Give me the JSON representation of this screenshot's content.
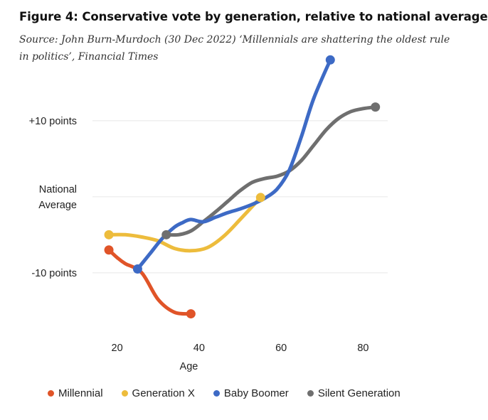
{
  "title": "Figure 4: Conservative vote by generation, relative to national average",
  "subtitle": "Source: John Burn-Murdoch (30 Dec 2022) ‘Millennials are shattering the oldest rule in politics’, Financial Times",
  "chart_data": {
    "type": "line",
    "xlabel": "Age",
    "ylabel": "",
    "x_ticks": [
      20,
      40,
      60,
      80
    ],
    "y_ticks": [
      {
        "value": 10,
        "label": "+10 points"
      },
      {
        "value": 0,
        "label": "National Average"
      },
      {
        "value": -10,
        "label": "-10 points"
      }
    ],
    "xlim": [
      14,
      86
    ],
    "ylim": [
      -16,
      17
    ],
    "grid": true,
    "legend_position": "bottom",
    "series": [
      {
        "name": "Millennial",
        "color": "#e05428",
        "points": [
          [
            18,
            -7
          ],
          [
            20,
            -8
          ],
          [
            22,
            -8.8
          ],
          [
            26,
            -10
          ],
          [
            30,
            -13.5
          ],
          [
            34,
            -15.2
          ],
          [
            38,
            -15.4
          ]
        ]
      },
      {
        "name": "Generation X",
        "color": "#edbc3c",
        "points": [
          [
            18,
            -5
          ],
          [
            22,
            -5
          ],
          [
            26,
            -5.3
          ],
          [
            30,
            -5.8
          ],
          [
            34,
            -6.8
          ],
          [
            38,
            -7.1
          ],
          [
            42,
            -6.7
          ],
          [
            46,
            -5.2
          ],
          [
            50,
            -3
          ],
          [
            55,
            -0.1
          ]
        ]
      },
      {
        "name": "Baby Boomer",
        "color": "#3d6ac5",
        "points": [
          [
            25,
            -9.5
          ],
          [
            28,
            -7.5
          ],
          [
            31,
            -5.5
          ],
          [
            34,
            -4
          ],
          [
            36,
            -3.4
          ],
          [
            38,
            -3
          ],
          [
            41,
            -3.3
          ],
          [
            44,
            -2.7
          ],
          [
            47,
            -2.1
          ],
          [
            50,
            -1.6
          ],
          [
            53,
            -1
          ],
          [
            56,
            -0.2
          ],
          [
            59,
            1
          ],
          [
            62,
            3.5
          ],
          [
            65,
            8
          ],
          [
            68,
            13
          ],
          [
            72,
            18
          ]
        ]
      },
      {
        "name": "Silent Generation",
        "color": "#6f6f6f",
        "points": [
          [
            32,
            -5
          ],
          [
            35,
            -5
          ],
          [
            38,
            -4.5
          ],
          [
            41,
            -3.3
          ],
          [
            44,
            -2
          ],
          [
            47,
            -0.6
          ],
          [
            50,
            0.8
          ],
          [
            53,
            1.9
          ],
          [
            56,
            2.4
          ],
          [
            59,
            2.7
          ],
          [
            62,
            3.4
          ],
          [
            65,
            4.8
          ],
          [
            68,
            6.8
          ],
          [
            71,
            8.8
          ],
          [
            74,
            10.3
          ],
          [
            77,
            11.2
          ],
          [
            80,
            11.6
          ],
          [
            83,
            11.8
          ]
        ]
      }
    ]
  }
}
